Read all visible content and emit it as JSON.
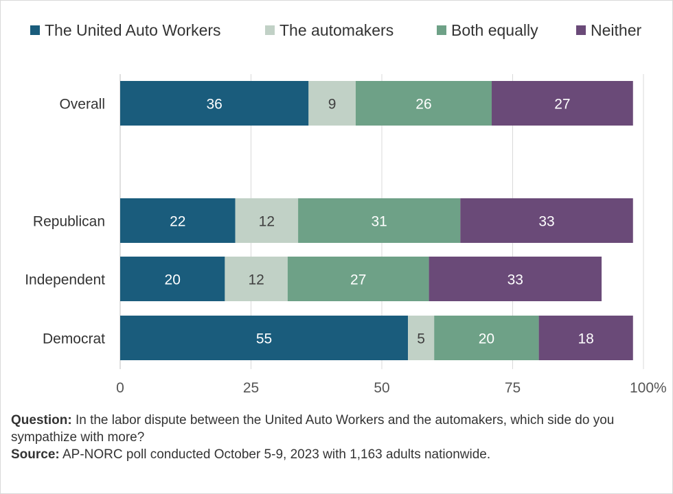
{
  "chart_data": {
    "type": "bar",
    "orientation": "horizontal",
    "stacked": true,
    "categories": [
      "Overall",
      "Republican",
      "Independent",
      "Democrat"
    ],
    "series": [
      {
        "name": "The United Auto Workers",
        "color": "#1a5c7c",
        "values": [
          36,
          22,
          20,
          55
        ]
      },
      {
        "name": "The automakers",
        "color": "#c1d1c6",
        "values": [
          9,
          12,
          12,
          5
        ]
      },
      {
        "name": "Both equally",
        "color": "#6ea187",
        "values": [
          26,
          31,
          27,
          20
        ]
      },
      {
        "name": "Neither",
        "color": "#6a4a78",
        "values": [
          27,
          33,
          33,
          18
        ]
      }
    ],
    "x_ticks": [
      "0",
      "25",
      "50",
      "75",
      "100%"
    ],
    "xlim": [
      0,
      100
    ],
    "grid": true,
    "legend_position": "top",
    "title": "",
    "xlabel": "",
    "ylabel": ""
  },
  "notes": {
    "question_label": "Question:",
    "question_text": "In the labor dispute between the United Auto Workers and the automakers, which side do you sympathize with more?",
    "source_label": "Source:",
    "source_text": "AP-NORC poll conducted October 5-9, 2023 with 1,163 adults nationwide."
  }
}
